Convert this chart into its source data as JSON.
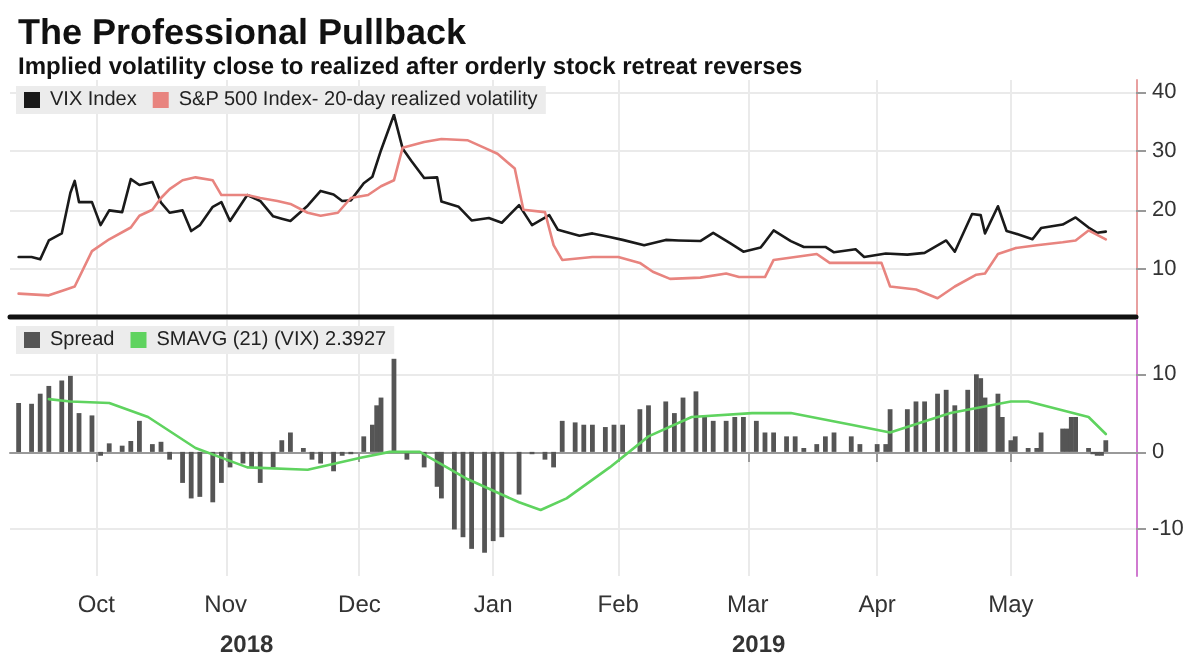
{
  "chart_data": [
    {
      "type": "line",
      "title": "The Professional Pullback",
      "subtitle": "Implied volatility close to realized after orderly stock retreat reverses",
      "xlim": [
        "2018-09-26",
        "2019-06-14"
      ],
      "ylim": [
        2,
        42
      ],
      "yticks": [
        10,
        20,
        30,
        40
      ],
      "xticks": [
        {
          "value": "2018-10-16",
          "label": null
        },
        {
          "value": "2018-11-15",
          "label": null
        },
        {
          "value": "2018-12-16",
          "label": null
        },
        {
          "value": "2019-01-16",
          "label": null
        },
        {
          "value": "2019-02-14",
          "label": null
        },
        {
          "value": "2019-03-16",
          "label": null
        },
        {
          "value": "2019-04-15",
          "label": null
        },
        {
          "value": "2019-05-16",
          "label": null
        }
      ],
      "tick_labels": "y",
      "grid": true,
      "legend": "top left",
      "marker": "none",
      "line_style": "solid",
      "series": [
        {
          "name": "VIX Index",
          "color": "#1a1a1a",
          "x": [
            "2018-09-28",
            "2018-10-01",
            "2018-10-03",
            "2018-10-05",
            "2018-10-08",
            "2018-10-10",
            "2018-10-11",
            "2018-10-12",
            "2018-10-15",
            "2018-10-17",
            "2018-10-19",
            "2018-10-22",
            "2018-10-24",
            "2018-10-26",
            "2018-10-29",
            "2018-10-31",
            "2018-11-02",
            "2018-11-05",
            "2018-11-07",
            "2018-11-09",
            "2018-11-12",
            "2018-11-14",
            "2018-11-16",
            "2018-11-20",
            "2018-11-23",
            "2018-11-26",
            "2018-11-28",
            "2018-11-30",
            "2018-12-04",
            "2018-12-07",
            "2018-12-10",
            "2018-12-12",
            "2018-12-14",
            "2018-12-17",
            "2018-12-19",
            "2018-12-21",
            "2018-12-24",
            "2018-12-26",
            "2018-12-28",
            "2018-12-31",
            "2019-01-03",
            "2019-01-04",
            "2019-01-08",
            "2019-01-11",
            "2019-01-15",
            "2019-01-18",
            "2019-01-22",
            "2019-01-25",
            "2019-01-29",
            "2019-01-31",
            "2019-02-05",
            "2019-02-08",
            "2019-02-12",
            "2019-02-15",
            "2019-02-20",
            "2019-02-25",
            "2019-02-28",
            "2019-03-05",
            "2019-03-08",
            "2019-03-12",
            "2019-03-15",
            "2019-03-19",
            "2019-03-22",
            "2019-03-26",
            "2019-03-29",
            "2019-04-03",
            "2019-04-05",
            "2019-04-10",
            "2019-04-12",
            "2019-04-17",
            "2019-04-22",
            "2019-04-26",
            "2019-05-01",
            "2019-05-03",
            "2019-05-07",
            "2019-05-09",
            "2019-05-10",
            "2019-05-13",
            "2019-05-15",
            "2019-05-17",
            "2019-05-21",
            "2019-05-23",
            "2019-05-28",
            "2019-05-31",
            "2019-06-03",
            "2019-06-05",
            "2019-06-07"
          ],
          "values": [
            12,
            12,
            11.6,
            14.8,
            16,
            22.9,
            24.9,
            21.3,
            21.3,
            17.4,
            19.9,
            19.6,
            25.2,
            24.2,
            24.7,
            21.2,
            19.5,
            19.9,
            16.4,
            17.4,
            20.5,
            21.3,
            18.1,
            22.5,
            21.5,
            18.9,
            18.5,
            18.1,
            20.7,
            23.2,
            22.6,
            21.5,
            21.6,
            24.5,
            25.6,
            30.1,
            36.1,
            30.4,
            28.3,
            25.4,
            25.5,
            21.4,
            20.5,
            18.2,
            18.6,
            17.8,
            20.8,
            17.4,
            19.1,
            16.6,
            15.6,
            16,
            15.4,
            14.9,
            14,
            14.9,
            14.8,
            14.7,
            16.1,
            14.3,
            12.9,
            13.6,
            16.5,
            14.7,
            13.7,
            13.7,
            12.8,
            13.3,
            12,
            12.6,
            12.4,
            12.7,
            14.8,
            12.9,
            19.3,
            19.1,
            16,
            20.6,
            16.4,
            16,
            15,
            16.9,
            17.5,
            18.7,
            17,
            16.1,
            16.3
          ]
        },
        {
          "name": "S&P 500 Index- 20-day realized volatility",
          "color": "#e8847f",
          "x": [
            "2018-09-28",
            "2018-10-05",
            "2018-10-09",
            "2018-10-11",
            "2018-10-15",
            "2018-10-19",
            "2018-10-24",
            "2018-10-26",
            "2018-10-29",
            "2018-10-31",
            "2018-11-02",
            "2018-11-05",
            "2018-11-08",
            "2018-11-12",
            "2018-11-14",
            "2018-11-20",
            "2018-11-23",
            "2018-11-27",
            "2018-11-30",
            "2018-12-04",
            "2018-12-07",
            "2018-12-11",
            "2018-12-14",
            "2018-12-18",
            "2018-12-21",
            "2018-12-24",
            "2018-12-26",
            "2018-12-31",
            "2019-01-04",
            "2019-01-10",
            "2019-01-14",
            "2019-01-17",
            "2019-01-21",
            "2019-01-23",
            "2019-01-28",
            "2019-01-30",
            "2019-02-01",
            "2019-02-08",
            "2019-02-14",
            "2019-02-19",
            "2019-02-22",
            "2019-02-26",
            "2019-03-05",
            "2019-03-11",
            "2019-03-14",
            "2019-03-20",
            "2019-03-22",
            "2019-03-27",
            "2019-04-01",
            "2019-04-04",
            "2019-04-10",
            "2019-04-16",
            "2019-04-18",
            "2019-04-24",
            "2019-04-29",
            "2019-05-03",
            "2019-05-08",
            "2019-05-10",
            "2019-05-13",
            "2019-05-17",
            "2019-05-22",
            "2019-05-28",
            "2019-05-31",
            "2019-06-03",
            "2019-06-07"
          ],
          "values": [
            5.8,
            5.5,
            6.5,
            7,
            13,
            15,
            17,
            19,
            20,
            22,
            23.5,
            25,
            25.5,
            25,
            22.5,
            22.5,
            22,
            21.5,
            21,
            19.5,
            19,
            19.5,
            22,
            22.5,
            24,
            25,
            30.5,
            31.5,
            32,
            31.8,
            30.5,
            29.5,
            27,
            20,
            19.6,
            14,
            11.5,
            12,
            12,
            11,
            9.5,
            8.3,
            8.5,
            9.2,
            8.6,
            8.6,
            11.5,
            12,
            12.5,
            11,
            11,
            11,
            7,
            6.5,
            5,
            7,
            9,
            9.2,
            12.5,
            13.5,
            14,
            14.5,
            14.8,
            16.5,
            15
          ]
        }
      ]
    },
    {
      "type": "bar",
      "xlim": [
        "2018-09-26",
        "2019-06-14"
      ],
      "ylim": [
        -16,
        17
      ],
      "yticks": [
        -10,
        0,
        10
      ],
      "xticks": [
        {
          "value": "2018-10-16",
          "label": "Oct"
        },
        {
          "value": "2018-11-15",
          "label": "Nov"
        },
        {
          "value": "2018-12-16",
          "label": "Dec"
        },
        {
          "value": "2019-01-16",
          "label": "Jan"
        },
        {
          "value": "2019-02-14",
          "label": "Feb"
        },
        {
          "value": "2019-03-16",
          "label": "Mar"
        },
        {
          "value": "2019-04-15",
          "label": "Apr"
        },
        {
          "value": "2019-05-16",
          "label": "May"
        }
      ],
      "grid": true,
      "legend": "top left",
      "annotations": [
        "2018",
        "2019"
      ],
      "series": [
        {
          "name": "Spread",
          "type": "bar",
          "color": "#555555",
          "x": [
            "2018-09-28",
            "2018-10-01",
            "2018-10-03",
            "2018-10-05",
            "2018-10-08",
            "2018-10-10",
            "2018-10-12",
            "2018-10-15",
            "2018-10-17",
            "2018-10-19",
            "2018-10-22",
            "2018-10-24",
            "2018-10-26",
            "2018-10-29",
            "2018-10-31",
            "2018-11-02",
            "2018-11-05",
            "2018-11-07",
            "2018-11-09",
            "2018-11-12",
            "2018-11-14",
            "2018-11-16",
            "2018-11-19",
            "2018-11-21",
            "2018-11-23",
            "2018-11-26",
            "2018-11-28",
            "2018-11-30",
            "2018-12-03",
            "2018-12-05",
            "2018-12-07",
            "2018-12-10",
            "2018-12-12",
            "2018-12-14",
            "2018-12-17",
            "2018-12-19",
            "2018-12-20",
            "2018-12-21",
            "2018-12-24",
            "2018-12-27",
            "2018-12-31",
            "2019-01-03",
            "2019-01-04",
            "2019-01-07",
            "2019-01-09",
            "2019-01-11",
            "2019-01-14",
            "2019-01-16",
            "2019-01-18",
            "2019-01-22",
            "2019-01-25",
            "2019-01-28",
            "2019-01-30",
            "2019-02-01",
            "2019-02-04",
            "2019-02-06",
            "2019-02-08",
            "2019-02-11",
            "2019-02-13",
            "2019-02-15",
            "2019-02-19",
            "2019-02-21",
            "2019-02-25",
            "2019-02-27",
            "2019-03-01",
            "2019-03-04",
            "2019-03-06",
            "2019-03-08",
            "2019-03-11",
            "2019-03-13",
            "2019-03-15",
            "2019-03-18",
            "2019-03-20",
            "2019-03-22",
            "2019-03-25",
            "2019-03-27",
            "2019-03-29",
            "2019-04-01",
            "2019-04-03",
            "2019-04-05",
            "2019-04-09",
            "2019-04-11",
            "2019-04-15",
            "2019-04-17",
            "2019-04-18",
            "2019-04-22",
            "2019-04-24",
            "2019-04-26",
            "2019-04-29",
            "2019-05-01",
            "2019-05-03",
            "2019-05-06",
            "2019-05-08",
            "2019-05-09",
            "2019-05-10",
            "2019-05-13",
            "2019-05-14",
            "2019-05-16",
            "2019-05-17",
            "2019-05-20",
            "2019-05-22",
            "2019-05-23",
            "2019-05-28",
            "2019-05-29",
            "2019-05-30",
            "2019-05-31",
            "2019-06-03",
            "2019-06-04",
            "2019-06-05",
            "2019-06-06",
            "2019-06-07"
          ],
          "values": [
            6.3,
            6.2,
            7.5,
            8.5,
            9.2,
            9.8,
            5,
            4.7,
            -0.5,
            1.1,
            0.8,
            1.4,
            4,
            1,
            1.3,
            -1,
            -4,
            -6,
            -5.8,
            -6.5,
            -4,
            -2,
            -1.5,
            -2,
            -4,
            -2,
            1.5,
            2.5,
            0.5,
            -1,
            -1.5,
            -2.5,
            -0.5,
            -0.3,
            2,
            3.5,
            6,
            7,
            12,
            -1,
            -2,
            -4.5,
            -6,
            -10,
            -11,
            -12.5,
            -13,
            -11.5,
            -11,
            -5.5,
            -0.3,
            -1,
            -2,
            4,
            3.8,
            3.5,
            3.5,
            3.2,
            3.5,
            3.5,
            5.5,
            6,
            6.5,
            5,
            7,
            7.8,
            4.5,
            4,
            4,
            4.5,
            4.5,
            4,
            2.5,
            2.5,
            2,
            2,
            0.5,
            1,
            2,
            2.5,
            2,
            1,
            1,
            1,
            5.5,
            5.5,
            6.5,
            6.5,
            7.5,
            8,
            6,
            8,
            10,
            9.5,
            7,
            7.5,
            4.5,
            1.5,
            2,
            0.5,
            0.5,
            2.5,
            3,
            3,
            4.5,
            4.5,
            0.5,
            -0.3,
            -0.5,
            -0.5,
            1.5
          ]
        },
        {
          "name": "SMAVG (21) (VIX) 2.3927",
          "type": "line",
          "color": "#5fd35f",
          "x": [
            "2018-10-05",
            "2018-10-10",
            "2018-10-19",
            "2018-10-28",
            "2018-11-08",
            "2018-11-20",
            "2018-12-04",
            "2018-12-16",
            "2018-12-23",
            "2018-12-30",
            "2019-01-10",
            "2019-01-22",
            "2019-01-27",
            "2019-02-02",
            "2019-02-12",
            "2019-02-21",
            "2019-03-03",
            "2019-03-17",
            "2019-03-26",
            "2019-04-09",
            "2019-04-18",
            "2019-05-02",
            "2019-05-16",
            "2019-05-20",
            "2019-06-03",
            "2019-06-07"
          ],
          "values": [
            6.8,
            6.5,
            6.3,
            4.5,
            0.5,
            -2,
            -2.3,
            -0.8,
            0,
            0,
            -3.5,
            -6.5,
            -7.5,
            -6,
            -2,
            2,
            4.5,
            5,
            5,
            3.5,
            2.5,
            5,
            6.5,
            6.5,
            4.5,
            2.3
          ]
        }
      ]
    }
  ]
}
